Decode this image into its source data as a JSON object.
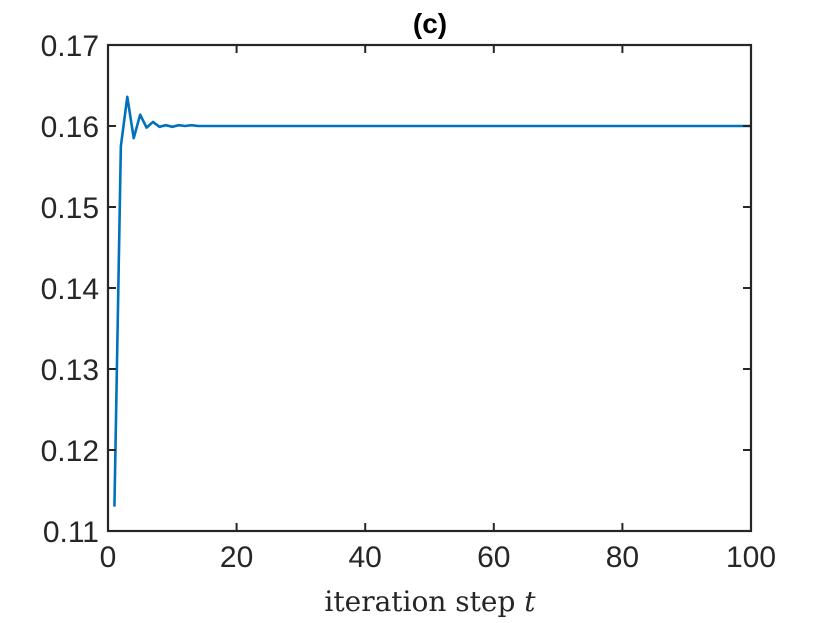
{
  "chart_data": {
    "type": "line",
    "title": "(c)",
    "xlabel": "iteration step",
    "xlabel_var": "t",
    "ylabel": "",
    "xlim": [
      0,
      100
    ],
    "ylim": [
      0.11,
      0.17
    ],
    "xticks": [
      0,
      20,
      40,
      60,
      80,
      100
    ],
    "xtick_labels": [
      "0",
      "20",
      "40",
      "60",
      "80",
      "100"
    ],
    "yticks": [
      0.11,
      0.12,
      0.13,
      0.14,
      0.15,
      0.16,
      0.17
    ],
    "ytick_labels": [
      "0.11",
      "0.12",
      "0.13",
      "0.14",
      "0.15",
      "0.16",
      "0.17"
    ],
    "grid": false,
    "colors": {
      "line": "#0072BD",
      "axes": "#262626"
    },
    "series": [
      {
        "x": [
          1,
          2,
          3,
          4,
          5,
          6,
          7,
          8,
          9,
          10,
          11,
          12,
          13,
          14,
          15,
          20,
          30,
          40,
          50,
          60,
          70,
          80,
          90,
          100
        ],
        "values": [
          0.113,
          0.1575,
          0.1636,
          0.1585,
          0.1614,
          0.1598,
          0.1605,
          0.1599,
          0.1601,
          0.1599,
          0.1601,
          0.16,
          0.1601,
          0.16,
          0.16,
          0.16,
          0.16,
          0.16,
          0.16,
          0.16,
          0.16,
          0.16,
          0.16,
          0.16
        ]
      }
    ]
  }
}
